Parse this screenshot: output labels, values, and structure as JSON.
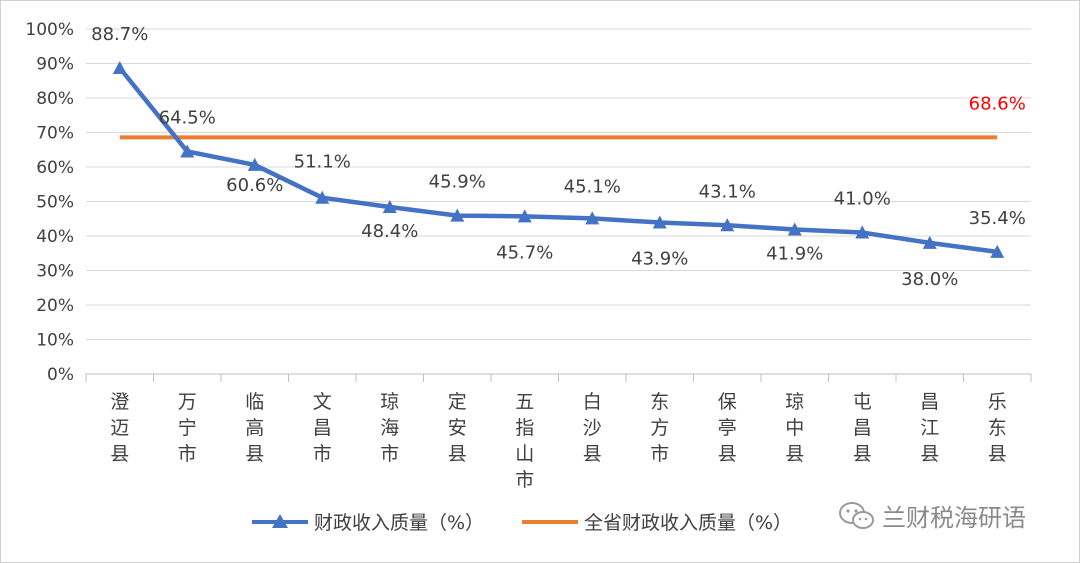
{
  "chart_data": {
    "type": "line",
    "categories": [
      "澄迈县",
      "万宁市",
      "临高县",
      "文昌市",
      "琼海市",
      "定安县",
      "五指山市",
      "白沙县",
      "东方市",
      "保亭县",
      "琼中县",
      "屯昌县",
      "昌江县",
      "乐东县"
    ],
    "series": [
      {
        "name": "财政收入质量（%）",
        "values": [
          88.7,
          64.5,
          60.6,
          51.1,
          48.4,
          45.9,
          45.7,
          45.1,
          43.9,
          43.1,
          41.9,
          41.0,
          38.0,
          35.4
        ],
        "labels": [
          "88.7%",
          "64.5%",
          "60.6%",
          "51.1%",
          "48.4%",
          "45.9%",
          "45.7%",
          "45.1%",
          "43.9%",
          "43.1%",
          "41.9%",
          "41.0%",
          "38.0%",
          "35.4%"
        ],
        "color": "#4472c4",
        "marker": "triangle"
      },
      {
        "name": "全省财政收入质量（%）",
        "values": [
          68.6,
          68.6,
          68.6,
          68.6,
          68.6,
          68.6,
          68.6,
          68.6,
          68.6,
          68.6,
          68.6,
          68.6,
          68.6,
          68.6
        ],
        "end_label": "68.6%",
        "label_color": "#ff0000",
        "color": "#ed7d31"
      }
    ],
    "ylim": [
      0,
      100
    ],
    "yticks": [
      "0%",
      "10%",
      "20%",
      "30%",
      "40%",
      "50%",
      "60%",
      "70%",
      "80%",
      "90%",
      "100%"
    ],
    "grid": true,
    "legend_position": "bottom"
  },
  "watermark": {
    "text": "兰财税海研语",
    "icon": "wechat-icon"
  }
}
